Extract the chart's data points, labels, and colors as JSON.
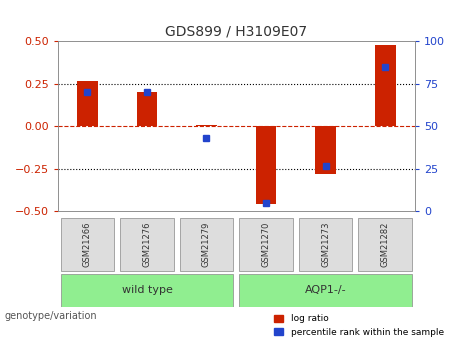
{
  "title": "GDS899 / H3109E07",
  "samples": [
    "GSM21266",
    "GSM21276",
    "GSM21279",
    "GSM21270",
    "GSM21273",
    "GSM21282"
  ],
  "log_ratios": [
    0.27,
    0.2,
    0.01,
    -0.455,
    -0.28,
    0.48
  ],
  "percentile_ranks": [
    70,
    70,
    43,
    5,
    27,
    85
  ],
  "groups": [
    {
      "label": "wild type",
      "samples": [
        "GSM21266",
        "GSM21276",
        "GSM21279"
      ],
      "color": "#90ee90"
    },
    {
      "label": "AQP1-/-",
      "samples": [
        "GSM21270",
        "GSM21273",
        "GSM21282"
      ],
      "color": "#90ee90"
    }
  ],
  "group_boundary": 3,
  "bar_color_log": "#cc2200",
  "bar_color_pct": "#2244cc",
  "ylim_log": [
    -0.5,
    0.5
  ],
  "ylim_pct": [
    0,
    100
  ],
  "yticks_log": [
    -0.5,
    -0.25,
    0,
    0.25,
    0.5
  ],
  "yticks_pct": [
    0,
    25,
    50,
    75,
    100
  ],
  "hlines": [
    -0.25,
    0,
    0.25
  ],
  "grid_color": "#000000",
  "bg_color": "#ffffff",
  "plot_bg": "#ffffff",
  "tick_label_color_left": "#cc2200",
  "tick_label_color_right": "#2244cc",
  "bar_width": 0.35,
  "legend_log_label": "log ratio",
  "legend_pct_label": "percentile rank within the sample",
  "genotype_label": "genotype/variation",
  "xlabel_color": "#888888"
}
